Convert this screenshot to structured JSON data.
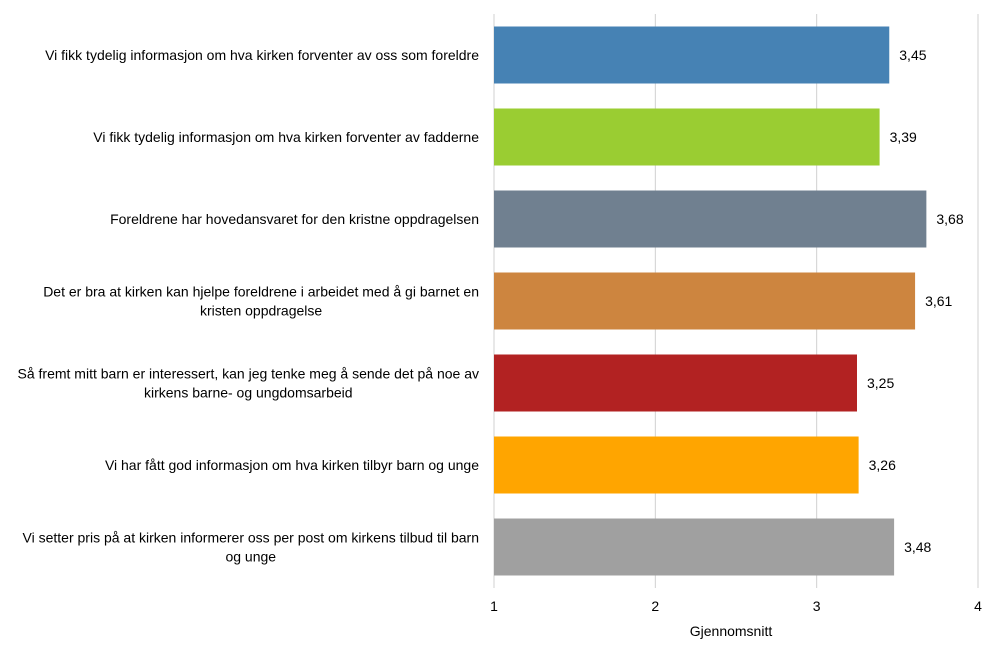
{
  "chart_data": {
    "type": "bar",
    "orientation": "horizontal",
    "categories": [
      [
        "Vi fikk tydelig informasjon om hva kirken forventer av oss som foreldre"
      ],
      [
        "Vi fikk tydelig informasjon om hva kirken forventer av fadderne"
      ],
      [
        "Foreldrene har hovedansvaret for den kristne oppdragelsen"
      ],
      [
        "Det er bra at kirken kan hjelpe foreldrene i arbeidet med å gi barnet en",
        "kristen oppdragelse"
      ],
      [
        "Så fremt mitt barn er interessert, kan jeg tenke meg å sende det på noe av",
        "kirkens barne- og ungdomsarbeid"
      ],
      [
        "Vi har fått god informasjon om hva kirken tilbyr barn og unge"
      ],
      [
        "Vi setter pris på at kirken informerer oss per post om kirkens tilbud til barn",
        "og unge"
      ]
    ],
    "values": [
      3.45,
      3.39,
      3.68,
      3.61,
      3.25,
      3.26,
      3.48
    ],
    "value_labels": [
      "3,45",
      "3,39",
      "3,68",
      "3,61",
      "3,25",
      "3,26",
      "3,48"
    ],
    "colors": [
      "#4682b4",
      "#9acd32",
      "#708090",
      "#cd853f",
      "#b22222",
      "#ffa500",
      "#a0a0a0"
    ],
    "xlabel": "Gjennomsnitt",
    "xlim": [
      1,
      4
    ],
    "xticks": [
      "1",
      "2",
      "3",
      "4"
    ],
    "grid": true
  }
}
